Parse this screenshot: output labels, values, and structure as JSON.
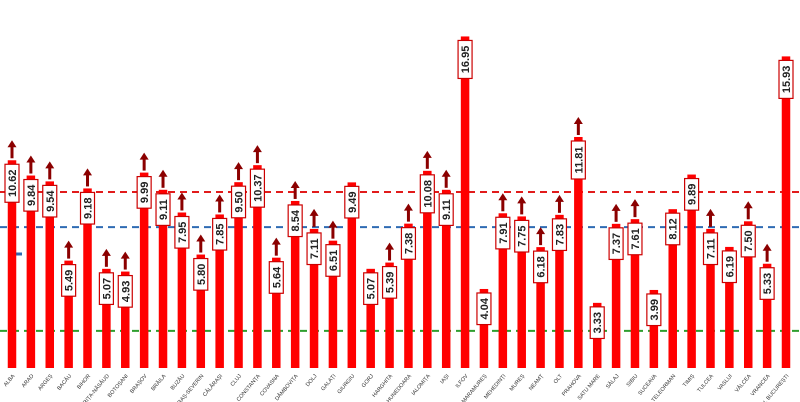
{
  "chart_data": {
    "type": "bar",
    "categories": [
      "ALBA",
      "ARAD",
      "ARGEȘ",
      "BACĂU",
      "BIHOR",
      "BISTRIȚA-NĂSĂUD",
      "BOTOȘANI",
      "BRAȘOV",
      "BRĂILA",
      "BUZĂU",
      "CARAȘ-SEVERIN",
      "CĂLĂRAȘI",
      "CLUJ",
      "CONSTANȚA",
      "COVASNA",
      "DÂMBOVIȚA",
      "DOLJ",
      "GALAȚI",
      "GIURGIU",
      "GORJ",
      "HARGHITA",
      "HUNEDOARA",
      "IALOMIȚA",
      "IAȘI",
      "ILFOV",
      "MARAMUREȘ",
      "MEHEDINȚI",
      "MUREȘ",
      "NEAMȚ",
      "OLT",
      "PRAHOVA",
      "SATU MARE",
      "SĂLAJ",
      "SIBIU",
      "SUCEAVA",
      "TELEORMAN",
      "TIMIȘ",
      "TULCEA",
      "VASLUI",
      "VÂLCEA",
      "VRANCEA",
      "MUN. BUCUREȘTI"
    ],
    "values": [
      10.62,
      9.84,
      9.54,
      5.49,
      9.18,
      5.07,
      4.93,
      9.99,
      9.11,
      7.95,
      5.8,
      7.85,
      9.5,
      10.37,
      5.64,
      8.54,
      7.11,
      6.51,
      9.49,
      5.07,
      5.39,
      7.38,
      10.08,
      9.11,
      16.95,
      4.04,
      7.91,
      7.75,
      6.18,
      7.83,
      11.81,
      3.33,
      7.37,
      7.61,
      3.99,
      8.12,
      9.89,
      7.11,
      6.19,
      7.5,
      5.33,
      15.93
    ],
    "labels": [
      "10.62",
      "9.84",
      "9.54",
      "5.49",
      "9.18",
      "5.07",
      "4.93",
      "9.99",
      "9.11",
      "7.95",
      "5.80",
      "7.85",
      "9.50",
      "10.37",
      "5.64",
      "8.54",
      "7.11",
      "6.51",
      "9.49",
      "5.07",
      "5.39",
      "7.38",
      "10.08",
      "9.11",
      "16.95",
      "4.04",
      "7.91",
      "7.75",
      "6.18",
      "7.83",
      "11.81",
      "3.33",
      "7.37",
      "7.61",
      "3.99",
      "8.12",
      "9.89",
      "7.11",
      "6.19",
      "7.50",
      "5.33",
      "15.93"
    ],
    "trend_up": [
      true,
      true,
      true,
      true,
      true,
      true,
      true,
      true,
      true,
      true,
      true,
      true,
      true,
      true,
      true,
      true,
      true,
      true,
      false,
      false,
      true,
      true,
      true,
      true,
      false,
      false,
      true,
      true,
      true,
      true,
      true,
      false,
      true,
      true,
      false,
      false,
      false,
      true,
      false,
      true,
      true,
      false
    ],
    "reference_lines": [
      {
        "value": 9.0,
        "color": "#e11b1b",
        "style": "dashed"
      },
      {
        "value": 7.2,
        "color": "#2e6bb3",
        "style": "dashed"
      },
      {
        "value": 1.9,
        "color": "#2f9e2f",
        "style": "dashed"
      }
    ],
    "ylim": [
      0,
      18.2
    ],
    "title": "",
    "xlabel": "",
    "ylabel": "",
    "grid": false,
    "colors": {
      "bar": "#ff0000",
      "arrow": "#8b0000",
      "label_border": "#cc0000",
      "label_text": "#222222"
    }
  }
}
